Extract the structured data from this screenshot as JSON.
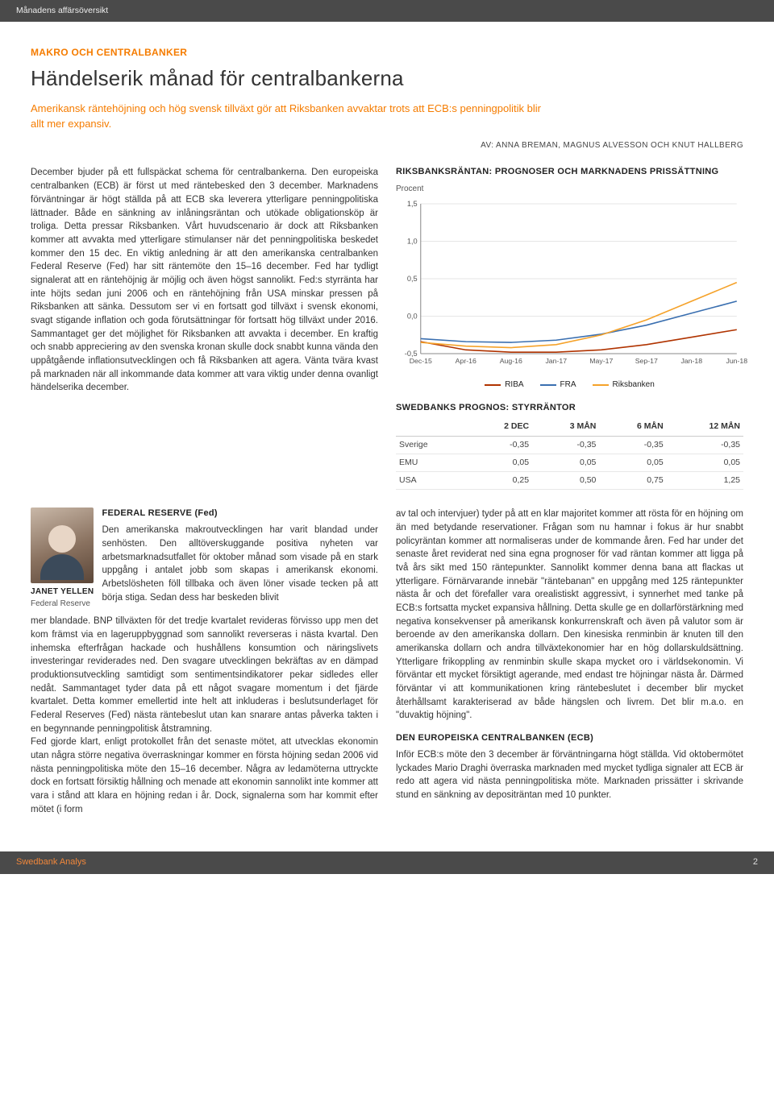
{
  "topbar": "Månadens affärsöversikt",
  "kicker": "MAKRO OCH CENTRALBANKER",
  "title": "Händelserik månad för centralbankerna",
  "lead": "Amerikansk räntehöjning och hög svensk tillväxt gör att Riksbanken avvaktar trots att ECB:s penningpolitik blir allt mer expansiv.",
  "byline": "AV: ANNA BREMAN, MAGNUS ALVESSON OCH KNUT HALLBERG",
  "left_body": "December bjuder på ett fullspäckat schema för centralbankerna. Den europeiska centralbanken (ECB) är först ut med räntebesked den 3 december. Marknadens förväntningar är högt ställda på att ECB ska leverera ytterligare penningpolitiska lättnader. Både en sänkning av inlåningsräntan och utökade obligationsköp är troliga. Detta pressar Riksbanken. Vårt huvudscenario är dock att Riksbanken kommer att avvakta med ytterligare stimulanser när det penningpolitiska beskedet kommer den 15 dec. En viktig anledning är att den amerikanska centralbanken Federal Reserve (Fed) har sitt räntemöte den 15–16 december. Fed har tydligt signalerat att en räntehöjnig är möjlig och även högst sannolikt. Fed:s styrränta har inte höjts sedan juni 2006 och en räntehöjning från USA minskar pressen på Riksbanken att sänka. Dessutom ser vi en fortsatt god tillväxt i svensk ekonomi, svagt stigande inflation och goda förutsättningar för fortsatt hög tillväxt under 2016. Sammantaget ger det möjlighet för Riksbanken att avvakta i december. En kraftig och snabb appreciering av den svenska kronan skulle dock snabbt kunna vända den uppåtgående inflationsutvecklingen och få Riksbanken att agera. Vänta tvära kvast på marknaden när all inkommande data kommer att vara viktig under denna ovanligt händelserika december.",
  "chart": {
    "title": "RIKSBANKSRÄNTAN: PROGNOSER OCH MARKNADENS PRISSÄTTNING",
    "ylabel": "Procent",
    "ylim": [
      -0.5,
      1.5
    ],
    "ytick_step": 0.5,
    "x_labels": [
      "Dec-15",
      "Apr-16",
      "Aug-16",
      "Jan-17",
      "May-17",
      "Sep-17",
      "Jan-18",
      "Jun-18"
    ],
    "background_color": "#ffffff",
    "grid_color": "#e6e6e6",
    "axis_color": "#888888",
    "series": [
      {
        "name": "RIBA",
        "color": "#b03300",
        "width": 1.6,
        "x": [
          0,
          1,
          2,
          3,
          4,
          5,
          6,
          7
        ],
        "y": [
          -0.34,
          -0.45,
          -0.48,
          -0.48,
          -0.45,
          -0.38,
          -0.28,
          -0.18
        ]
      },
      {
        "name": "FRA",
        "color": "#3a6fb0",
        "width": 1.6,
        "x": [
          0,
          1,
          2,
          3,
          4,
          5,
          6,
          7
        ],
        "y": [
          -0.3,
          -0.34,
          -0.35,
          -0.32,
          -0.24,
          -0.12,
          0.04,
          0.2
        ]
      },
      {
        "name": "Riksbanken",
        "color": "#f5a22a",
        "width": 1.6,
        "x": [
          0,
          1,
          2,
          3,
          4,
          5,
          6,
          7
        ],
        "y": [
          -0.35,
          -0.4,
          -0.42,
          -0.38,
          -0.25,
          -0.05,
          0.2,
          0.45
        ]
      }
    ]
  },
  "forecast_table": {
    "title": "SWEDBANKS PROGNOS: STYRRÄNTOR",
    "columns": [
      "",
      "2 DEC",
      "3 MÅN",
      "6 MÅN",
      "12 MÅN"
    ],
    "rows": [
      [
        "Sverige",
        "-0,35",
        "-0,35",
        "-0,35",
        "-0,35"
      ],
      [
        "EMU",
        "0,05",
        "0,05",
        "0,05",
        "0,05"
      ],
      [
        "USA",
        "0,25",
        "0,50",
        "0,75",
        "1,25"
      ]
    ]
  },
  "person": {
    "name": "JANET YELLEN",
    "role": "Federal Reserve"
  },
  "fed": {
    "heading": "FEDERAL RESERVE (Fed)",
    "intro": "Den amerikanska makroutvecklingen har varit blandad under senhösten. Den alltöverskuggande positiva nyheten var arbetsmarknadsutfallet för oktober månad som visade på en stark uppgång i antalet jobb som skapas i amerikansk ekonomi. Arbetslösheten föll tillbaka och även löner visade tecken på att börja stiga. Sedan dess har beskeden blivit",
    "body": "mer blandade. BNP tillväxten för det tredje kvartalet revideras förvisso upp men det kom främst via en lageruppbyggnad som sannolikt reverseras i nästa kvartal. Den inhemska efterfrågan hackade och hushållens konsumtion och näringslivets investeringar reviderades ned. Den svagare utvecklingen bekräftas av en dämpad produktionsutveckling samtidigt som sentimentsindikatorer pekar sidledes eller nedåt. Sammantaget tyder data på ett något svagare momentum i det fjärde kvartalet. Detta kommer emellertid inte helt att inkluderas i beslutsunderlaget för Federal Reserves (Fed) nästa räntebeslut utan kan snarare antas påverka takten i en begynnande penningpolitisk åtstramning.\n    Fed gjorde klart, enligt protokollet från det senaste mötet, att utvecklas ekonomin utan några större negativa överraskningar kommer en första höjning sedan 2006 vid nästa penningpolitiska möte den 15–16 december. Några av ledamöterna uttryckte dock en fortsatt försiktig hållning och menade att ekonomin sannolikt inte kommer att vara i stånd att klara en höjning redan i år. Dock, signalerna som har kommit efter mötet (i form"
  },
  "right_body": "av tal och intervjuer) tyder på att en klar majoritet kommer att rösta för en höjning om än med betydande reservationer. Frågan som nu hamnar i fokus är hur snabbt policyräntan kommer att normaliseras under de kommande åren. Fed har under det senaste året reviderat ned sina egna prognoser för vad räntan kommer att ligga på två års sikt med 150 räntepunkter. Sannolikt kommer denna bana att flackas ut ytterligare. Förnärvarande innebär \"räntebanan\" en uppgång med 125 räntepunkter nästa år och det förefaller vara orealistiskt aggressivt, i synnerhet med tanke på ECB:s fortsatta mycket expansiva hållning. Detta skulle ge en dollarförstärkning med negativa konsekvenser på amerikansk konkurrenskraft och även på valutor som är beroende av den amerikanska dollarn. Den kinesiska renminbin är knuten till den amerikanska dollarn och andra tillväxtekonomier har en hög dollarskuldsättning. Ytterligare frikoppling av renminbin skulle skapa mycket oro i världsekonomin. Vi förväntar ett mycket försiktigt agerande, med endast tre höjningar nästa år. Därmed förväntar vi att kommunikationen kring räntebeslutet i december blir mycket återhållsamt karakteriserad av både hängslen och livrem. Det blir m.a.o. en \"duvaktig höjning\".",
  "ecb": {
    "heading": "DEN EUROPEISKA CENTRALBANKEN (ECB)",
    "body": "Inför ECB:s möte den 3 december är förväntningarna högt ställda. Vid oktobermötet lyckades Mario Draghi överraska marknaden med mycket tydliga signaler att ECB är redo att agera vid nästa penningpolitiska möte. Marknaden prissätter i skrivande stund en sänkning av depositräntan med 10 punkter."
  },
  "footer": {
    "brand": "Swedbank Analys",
    "page": "2"
  }
}
